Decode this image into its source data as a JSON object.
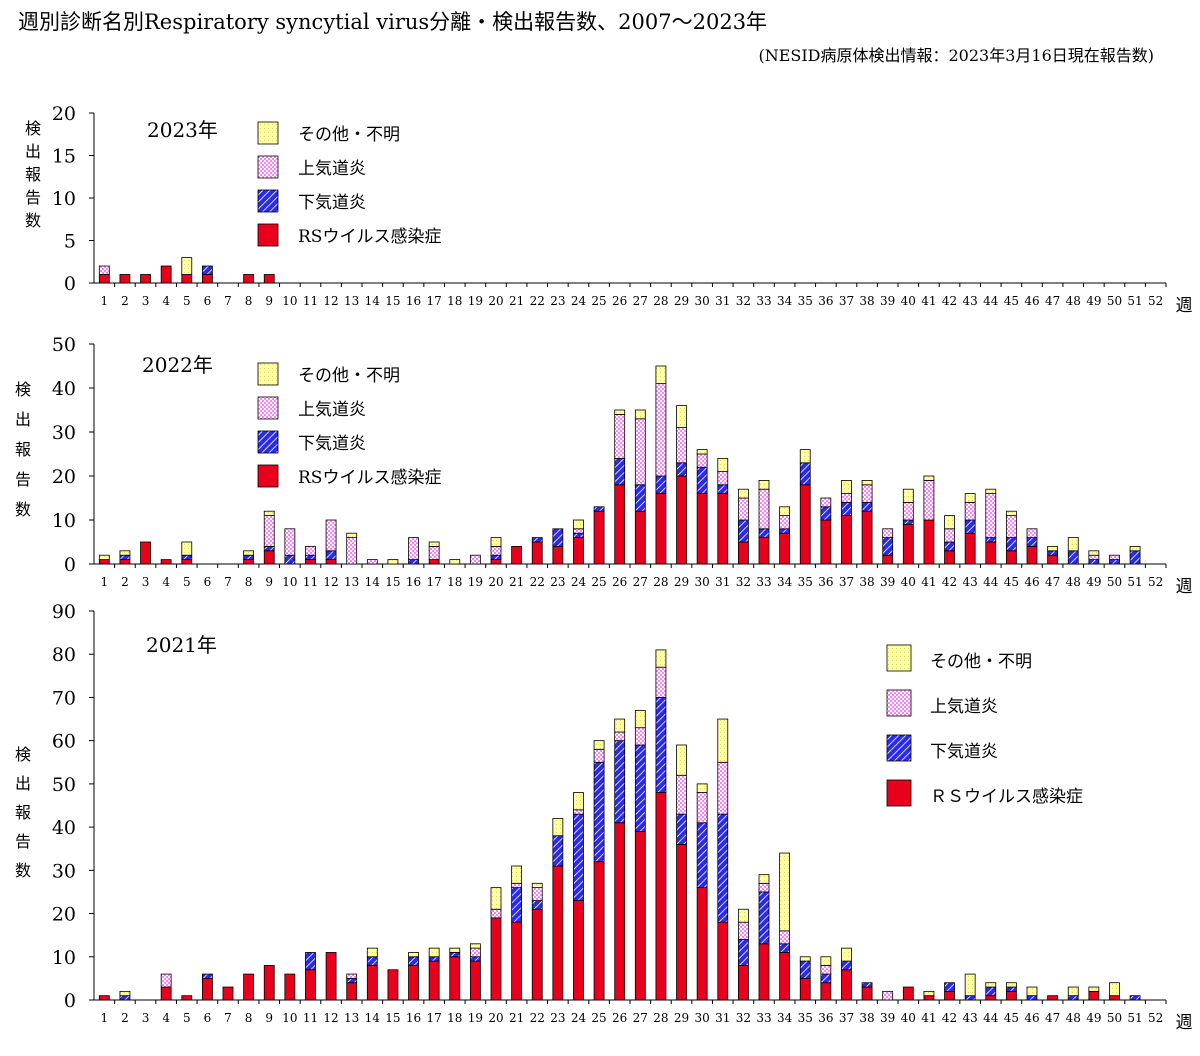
{
  "title": "週別診断名別Respiratory syncytial virus分離・検出報告数、2007〜2023年",
  "subtitle": "(NESID病原体検出情報：2023年3月16日現在報告数)",
  "legend_labels": [
    "その他・不明",
    "上気道炎",
    "下気道炎",
    "RSウイルス感染症"
  ],
  "legend_labels_2021": [
    "その他・不明",
    "上気道炎",
    "下気道炎",
    "ＲＳウイルス感染症"
  ],
  "colors": {
    "rs": "#e8001c",
    "lower": "#2a2ae8",
    "upper": "#ff80ff",
    "other": "#ffffa0"
  },
  "chart_data": [
    {
      "type": "bar",
      "stacked": true,
      "year_label": "2023年",
      "ylabel": "検出報告数",
      "x_unit": "週",
      "ylim": [
        0,
        20
      ],
      "yticks": [
        0,
        5,
        10,
        15,
        20
      ],
      "categories": [
        "1",
        "2",
        "3",
        "4",
        "5",
        "6",
        "7",
        "8",
        "9",
        "10",
        "11",
        "12",
        "13",
        "14",
        "15",
        "16",
        "17",
        "18",
        "19",
        "20",
        "21",
        "22",
        "23",
        "24",
        "25",
        "26",
        "27",
        "28",
        "29",
        "30",
        "31",
        "32",
        "33",
        "34",
        "35",
        "36",
        "37",
        "38",
        "39",
        "40",
        "41",
        "42",
        "43",
        "44",
        "45",
        "46",
        "47",
        "48",
        "49",
        "50",
        "51",
        "52"
      ],
      "series": [
        {
          "name": "RSウイルス感染症",
          "values": [
            1,
            1,
            1,
            2,
            1,
            1,
            0,
            1,
            1,
            0,
            0,
            0,
            0,
            0,
            0,
            0,
            0,
            0,
            0,
            0,
            0,
            0,
            0,
            0,
            0,
            0,
            0,
            0,
            0,
            0,
            0,
            0,
            0,
            0,
            0,
            0,
            0,
            0,
            0,
            0,
            0,
            0,
            0,
            0,
            0,
            0,
            0,
            0,
            0,
            0,
            0,
            0
          ]
        },
        {
          "name": "下気道炎",
          "values": [
            0,
            0,
            0,
            0,
            0,
            1,
            0,
            0,
            0,
            0,
            0,
            0,
            0,
            0,
            0,
            0,
            0,
            0,
            0,
            0,
            0,
            0,
            0,
            0,
            0,
            0,
            0,
            0,
            0,
            0,
            0,
            0,
            0,
            0,
            0,
            0,
            0,
            0,
            0,
            0,
            0,
            0,
            0,
            0,
            0,
            0,
            0,
            0,
            0,
            0,
            0,
            0
          ]
        },
        {
          "name": "上気道炎",
          "values": [
            1,
            0,
            0,
            0,
            0,
            0,
            0,
            0,
            0,
            0,
            0,
            0,
            0,
            0,
            0,
            0,
            0,
            0,
            0,
            0,
            0,
            0,
            0,
            0,
            0,
            0,
            0,
            0,
            0,
            0,
            0,
            0,
            0,
            0,
            0,
            0,
            0,
            0,
            0,
            0,
            0,
            0,
            0,
            0,
            0,
            0,
            0,
            0,
            0,
            0,
            0,
            0
          ]
        },
        {
          "name": "その他・不明",
          "values": [
            0,
            0,
            0,
            0,
            2,
            0,
            0,
            0,
            0,
            0,
            0,
            0,
            0,
            0,
            0,
            0,
            0,
            0,
            0,
            0,
            0,
            0,
            0,
            0,
            0,
            0,
            0,
            0,
            0,
            0,
            0,
            0,
            0,
            0,
            0,
            0,
            0,
            0,
            0,
            0,
            0,
            0,
            0,
            0,
            0,
            0,
            0,
            0,
            0,
            0,
            0,
            0
          ]
        }
      ]
    },
    {
      "type": "bar",
      "stacked": true,
      "year_label": "2022年",
      "ylabel": "検出報告数",
      "x_unit": "週",
      "ylim": [
        0,
        50
      ],
      "yticks": [
        0,
        10,
        20,
        30,
        40,
        50
      ],
      "categories": [
        "1",
        "2",
        "3",
        "4",
        "5",
        "6",
        "7",
        "8",
        "9",
        "10",
        "11",
        "12",
        "13",
        "14",
        "15",
        "16",
        "17",
        "18",
        "19",
        "20",
        "21",
        "22",
        "23",
        "24",
        "25",
        "26",
        "27",
        "28",
        "29",
        "30",
        "31",
        "32",
        "33",
        "34",
        "35",
        "36",
        "37",
        "38",
        "39",
        "40",
        "41",
        "42",
        "43",
        "44",
        "45",
        "46",
        "47",
        "48",
        "49",
        "50",
        "51",
        "52"
      ],
      "series": [
        {
          "name": "RSウイルス感染症",
          "values": [
            1,
            1,
            5,
            1,
            1,
            0,
            0,
            1,
            3,
            0,
            1,
            1,
            0,
            0,
            0,
            0,
            1,
            0,
            0,
            1,
            4,
            5,
            4,
            6,
            12,
            18,
            12,
            16,
            20,
            16,
            16,
            5,
            6,
            7,
            18,
            10,
            11,
            12,
            2,
            9,
            10,
            3,
            7,
            5,
            3,
            4,
            2,
            0,
            0,
            0,
            0,
            0
          ]
        },
        {
          "name": "下気道炎",
          "values": [
            0,
            1,
            0,
            0,
            1,
            0,
            0,
            1,
            1,
            2,
            1,
            2,
            0,
            0,
            0,
            1,
            0,
            0,
            0,
            1,
            0,
            1,
            4,
            1,
            1,
            6,
            6,
            4,
            3,
            6,
            2,
            5,
            2,
            1,
            5,
            3,
            3,
            2,
            4,
            1,
            0,
            2,
            3,
            1,
            3,
            2,
            1,
            3,
            1,
            1,
            3,
            0
          ]
        },
        {
          "name": "上気道炎",
          "values": [
            0,
            0,
            0,
            0,
            0,
            0,
            0,
            0,
            7,
            6,
            2,
            7,
            6,
            1,
            0,
            5,
            3,
            0,
            2,
            2,
            0,
            0,
            0,
            1,
            0,
            10,
            15,
            21,
            8,
            3,
            3,
            5,
            9,
            3,
            0,
            2,
            2,
            4,
            2,
            4,
            9,
            3,
            4,
            10,
            5,
            2,
            0,
            0,
            1,
            1,
            0,
            0
          ]
        },
        {
          "name": "その他・不明",
          "values": [
            1,
            1,
            0,
            0,
            3,
            0,
            0,
            1,
            1,
            0,
            0,
            0,
            1,
            0,
            1,
            0,
            1,
            1,
            0,
            2,
            0,
            0,
            0,
            2,
            0,
            1,
            2,
            4,
            5,
            1,
            3,
            2,
            2,
            2,
            3,
            0,
            3,
            1,
            0,
            3,
            1,
            3,
            2,
            1,
            1,
            0,
            1,
            3,
            1,
            0,
            1,
            0
          ]
        }
      ]
    },
    {
      "type": "bar",
      "stacked": true,
      "year_label": "2021年",
      "ylabel": "検出報告数",
      "x_unit": "週",
      "ylim": [
        0,
        90
      ],
      "yticks": [
        0,
        10,
        20,
        30,
        40,
        50,
        60,
        70,
        80,
        90
      ],
      "categories": [
        "1",
        "2",
        "3",
        "4",
        "5",
        "6",
        "7",
        "8",
        "9",
        "10",
        "11",
        "12",
        "13",
        "14",
        "15",
        "16",
        "17",
        "18",
        "19",
        "20",
        "21",
        "22",
        "23",
        "24",
        "25",
        "26",
        "27",
        "28",
        "29",
        "30",
        "31",
        "32",
        "33",
        "34",
        "35",
        "36",
        "37",
        "38",
        "39",
        "40",
        "41",
        "42",
        "43",
        "44",
        "45",
        "46",
        "47",
        "48",
        "49",
        "50",
        "51",
        "52"
      ],
      "series": [
        {
          "name": "ＲＳウイルス感染症",
          "values": [
            1,
            0,
            0,
            3,
            1,
            5,
            3,
            6,
            8,
            6,
            7,
            11,
            4,
            8,
            7,
            8,
            9,
            10,
            9,
            19,
            18,
            21,
            31,
            23,
            32,
            41,
            39,
            48,
            36,
            26,
            18,
            8,
            13,
            11,
            5,
            4,
            7,
            3,
            0,
            3,
            1,
            2,
            0,
            1,
            2,
            0,
            1,
            0,
            2,
            1,
            0,
            0
          ]
        },
        {
          "name": "下気道炎",
          "values": [
            0,
            1,
            0,
            0,
            0,
            1,
            0,
            0,
            0,
            0,
            4,
            0,
            1,
            2,
            0,
            2,
            1,
            1,
            1,
            0,
            8,
            2,
            7,
            20,
            23,
            19,
            20,
            22,
            7,
            15,
            25,
            6,
            12,
            2,
            4,
            2,
            2,
            1,
            0,
            0,
            0,
            2,
            1,
            2,
            1,
            1,
            0,
            1,
            0,
            0,
            1,
            0
          ]
        },
        {
          "name": "上気道炎",
          "values": [
            0,
            0,
            0,
            3,
            0,
            0,
            0,
            0,
            0,
            0,
            0,
            0,
            1,
            0,
            0,
            0,
            0,
            0,
            2,
            2,
            1,
            3,
            0,
            1,
            3,
            2,
            4,
            7,
            9,
            7,
            12,
            4,
            2,
            3,
            0,
            2,
            0,
            0,
            2,
            0,
            0,
            0,
            0,
            0,
            0,
            0,
            0,
            0,
            0,
            0,
            0,
            0
          ]
        },
        {
          "name": "その他・不明",
          "values": [
            0,
            1,
            0,
            0,
            0,
            0,
            0,
            0,
            0,
            0,
            0,
            0,
            0,
            2,
            0,
            1,
            2,
            1,
            1,
            5,
            4,
            1,
            4,
            4,
            2,
            3,
            4,
            4,
            7,
            2,
            10,
            3,
            2,
            18,
            1,
            2,
            3,
            0,
            0,
            0,
            1,
            0,
            5,
            1,
            1,
            2,
            0,
            2,
            1,
            3,
            0,
            0
          ]
        }
      ]
    }
  ]
}
